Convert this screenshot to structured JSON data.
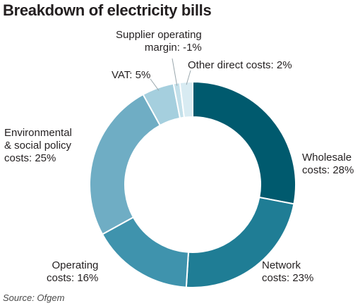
{
  "chart_data": {
    "type": "pie",
    "title": "Breakdown of electricity bills",
    "source": "Source: Ofgem",
    "slices": [
      {
        "name": "Wholesale costs",
        "value": 28,
        "label": "Wholesale\ncosts: 28%",
        "color": "#005a6e"
      },
      {
        "name": "Network costs",
        "value": 23,
        "label": "Network\ncosts: 23%",
        "color": "#1f7d95"
      },
      {
        "name": "Operating costs",
        "value": 16,
        "label": "Operating\ncosts: 16%",
        "color": "#3f93ad"
      },
      {
        "name": "Environmental & social policy costs",
        "value": 25,
        "label": "Environmental\n& social policy\ncosts: 25%",
        "color": "#6fadc4"
      },
      {
        "name": "VAT",
        "value": 5,
        "label": "VAT: 5%",
        "color": "#a5cfde"
      },
      {
        "name": "Supplier operating margin",
        "value": -1,
        "label": "Supplier operating\nmargin: -1%",
        "color": "#c3e0ea"
      },
      {
        "name": "Other direct costs",
        "value": 2,
        "label": "Other direct costs: 2%",
        "color": "#d8ebf2"
      }
    ]
  }
}
